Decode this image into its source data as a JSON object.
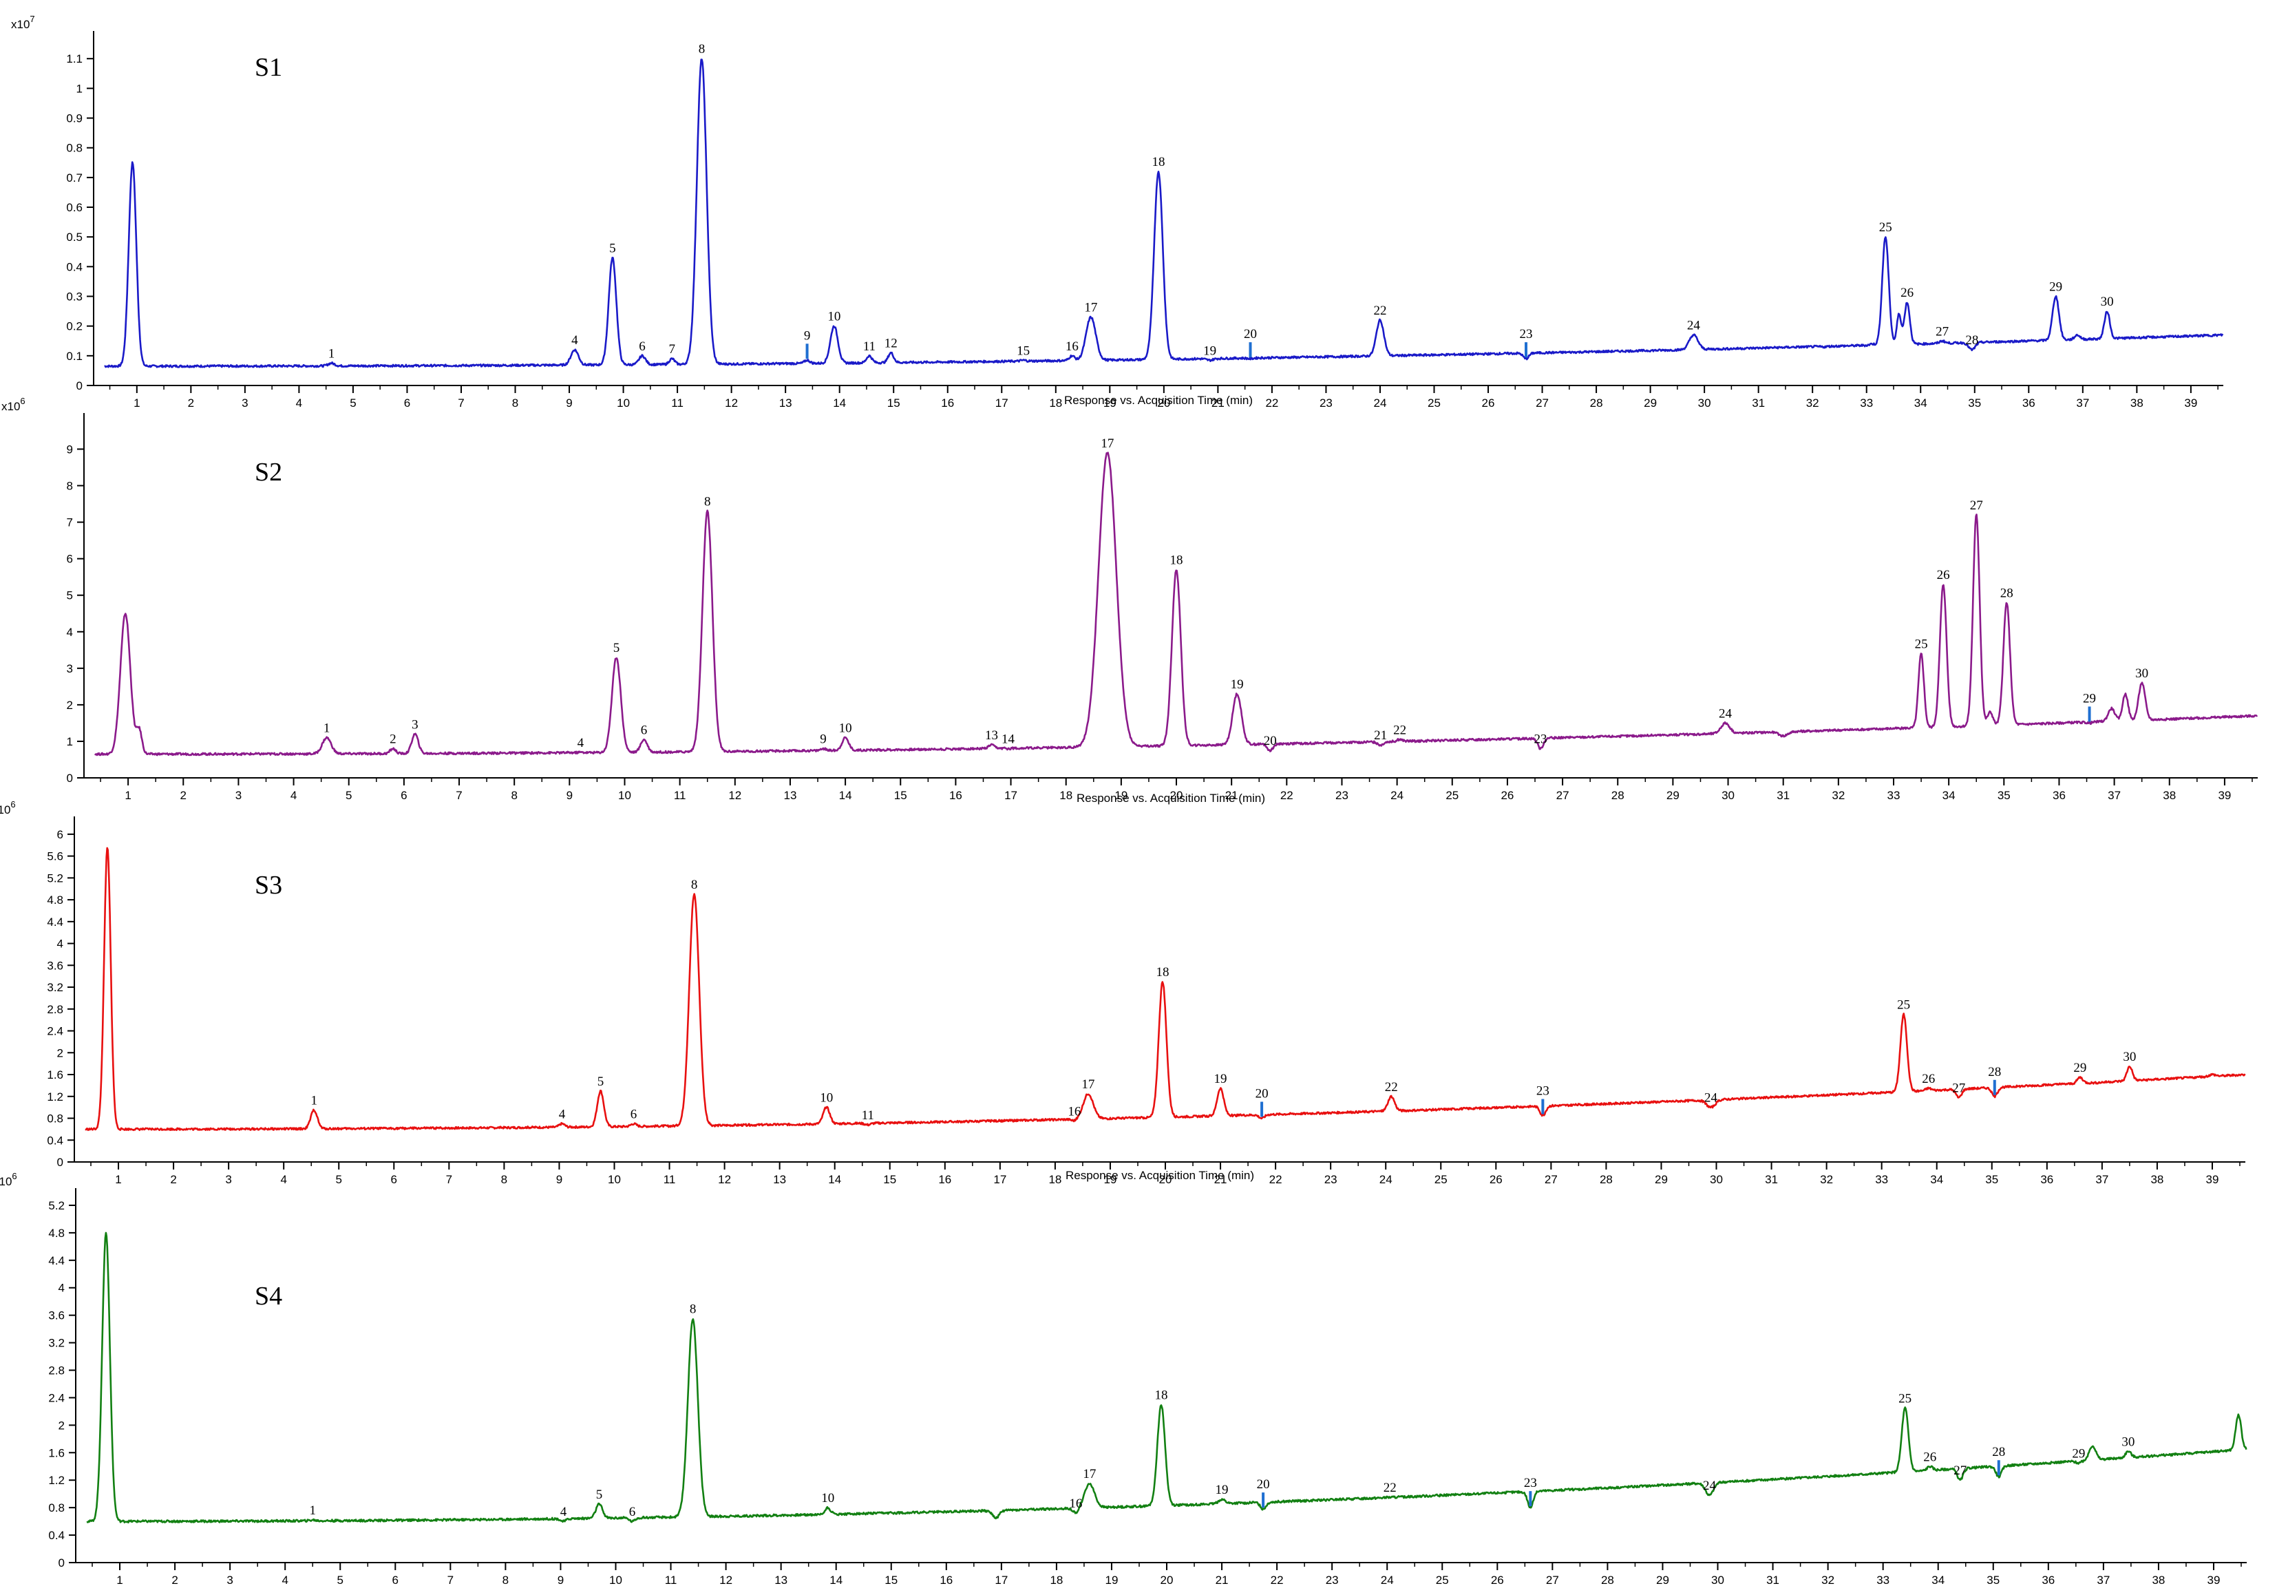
{
  "chart_data": [
    {
      "type": "line",
      "title": "S1",
      "exponent_label": "x10",
      "exponent_power": "7",
      "xlabel": "Response vs. Acquisition Time (min)",
      "color": "#1a1ac8",
      "xlim": [
        0.2,
        39.6
      ],
      "ylim": [
        0,
        1.17
      ],
      "yticks": [
        "0",
        "0.1",
        "0.2",
        "0.3",
        "0.4",
        "0.5",
        "0.6",
        "0.7",
        "0.8",
        "0.9",
        "1",
        "1.1"
      ],
      "xticks": [
        "1",
        "2",
        "3",
        "4",
        "5",
        "6",
        "7",
        "8",
        "9",
        "10",
        "11",
        "12",
        "13",
        "14",
        "15",
        "16",
        "17",
        "18",
        "19",
        "20",
        "21",
        "22",
        "23",
        "24",
        "25",
        "26",
        "27",
        "28",
        "29",
        "30",
        "31",
        "32",
        "33",
        "34",
        "35",
        "36",
        "37",
        "38",
        "39"
      ],
      "baseline": {
        "start": 0.065,
        "end": 0.17
      },
      "peaks": [
        {
          "label": "",
          "x": 0.92,
          "y": 0.75,
          "w": 0.07
        },
        {
          "label": "1",
          "x": 4.6,
          "y": 0.075,
          "w": 0.06
        },
        {
          "label": "4",
          "x": 9.1,
          "y": 0.12,
          "w": 0.07
        },
        {
          "label": "5",
          "x": 9.8,
          "y": 0.43,
          "w": 0.07
        },
        {
          "label": "6",
          "x": 10.35,
          "y": 0.1,
          "w": 0.06
        },
        {
          "label": "7",
          "x": 10.9,
          "y": 0.09,
          "w": 0.05
        },
        {
          "label": "8",
          "x": 11.45,
          "y": 1.1,
          "w": 0.09
        },
        {
          "label": "9",
          "x": 13.4,
          "y": 0.085,
          "w": 0.05
        },
        {
          "label": "10",
          "x": 13.9,
          "y": 0.2,
          "w": 0.07
        },
        {
          "label": "11",
          "x": 14.55,
          "y": 0.1,
          "w": 0.05
        },
        {
          "label": "12",
          "x": 14.95,
          "y": 0.11,
          "w": 0.05
        },
        {
          "label": "15",
          "x": 17.4,
          "y": 0.085,
          "w": 0.05
        },
        {
          "label": "16",
          "x": 18.3,
          "y": 0.1,
          "w": 0.05
        },
        {
          "label": "17",
          "x": 18.65,
          "y": 0.23,
          "w": 0.09
        },
        {
          "label": "18",
          "x": 19.9,
          "y": 0.72,
          "w": 0.08
        },
        {
          "label": "19",
          "x": 20.85,
          "y": 0.085,
          "w": 0.06
        },
        {
          "label": "20",
          "x": 21.6,
          "y": 0.09,
          "w": 0.05
        },
        {
          "label": "22",
          "x": 24.0,
          "y": 0.22,
          "w": 0.07
        },
        {
          "label": "23",
          "x": 26.7,
          "y": 0.09,
          "w": 0.05
        },
        {
          "label": "24",
          "x": 29.8,
          "y": 0.17,
          "w": 0.08
        },
        {
          "label": "25",
          "x": 33.35,
          "y": 0.5,
          "w": 0.06
        },
        {
          "label": "26",
          "x": 33.75,
          "y": 0.28,
          "w": 0.05
        },
        {
          "label": "27",
          "x": 34.4,
          "y": 0.15,
          "w": 0.05
        },
        {
          "label": "28",
          "x": 34.95,
          "y": 0.12,
          "w": 0.06
        },
        {
          "label": "29",
          "x": 36.5,
          "y": 0.3,
          "w": 0.06
        },
        {
          "label": "30",
          "x": 37.45,
          "y": 0.25,
          "w": 0.05
        }
      ],
      "extra_peaks": [
        {
          "x": 33.1,
          "y": 0.14,
          "w": 0.04
        },
        {
          "x": 33.6,
          "y": 0.24,
          "w": 0.04
        },
        {
          "x": 36.9,
          "y": 0.17,
          "w": 0.05
        },
        {
          "x": 32.2,
          "y": 0.13,
          "w": 0.06
        }
      ],
      "markers": [
        "9",
        "20",
        "23"
      ]
    },
    {
      "type": "line",
      "title": "S2",
      "exponent_label": "x10",
      "exponent_power": "6",
      "xlabel": "Response vs. Acquisition Time (min)",
      "color": "#8b1a8b",
      "xlim": [
        0.2,
        39.6
      ],
      "ylim": [
        0,
        9.8
      ],
      "yticks": [
        "0",
        "1",
        "2",
        "3",
        "4",
        "5",
        "6",
        "7",
        "8",
        "9"
      ],
      "xticks": [
        "1",
        "2",
        "3",
        "4",
        "5",
        "6",
        "7",
        "8",
        "9",
        "10",
        "11",
        "12",
        "13",
        "14",
        "15",
        "16",
        "17",
        "18",
        "19",
        "20",
        "21",
        "22",
        "23",
        "24",
        "25",
        "26",
        "27",
        "28",
        "29",
        "30",
        "31",
        "32",
        "33",
        "34",
        "35",
        "36",
        "37",
        "38",
        "39"
      ],
      "baseline": {
        "start": 0.65,
        "end": 1.7
      },
      "peaks": [
        {
          "label": "",
          "x": 0.95,
          "y": 4.5,
          "w": 0.09
        },
        {
          "label": "1",
          "x": 4.6,
          "y": 1.1,
          "w": 0.08
        },
        {
          "label": "2",
          "x": 5.8,
          "y": 0.8,
          "w": 0.05
        },
        {
          "label": "3",
          "x": 6.2,
          "y": 1.2,
          "w": 0.06
        },
        {
          "label": "4",
          "x": 9.2,
          "y": 0.7,
          "w": 0.05
        },
        {
          "label": "5",
          "x": 9.85,
          "y": 3.3,
          "w": 0.08
        },
        {
          "label": "6",
          "x": 10.35,
          "y": 1.05,
          "w": 0.06
        },
        {
          "label": "8",
          "x": 11.5,
          "y": 7.3,
          "w": 0.09
        },
        {
          "label": "9",
          "x": 13.6,
          "y": 0.8,
          "w": 0.05
        },
        {
          "label": "10",
          "x": 14.0,
          "y": 1.1,
          "w": 0.06
        },
        {
          "label": "13",
          "x": 16.65,
          "y": 0.9,
          "w": 0.05
        },
        {
          "label": "14",
          "x": 16.95,
          "y": 0.8,
          "w": 0.05
        },
        {
          "label": "17",
          "x": 18.75,
          "y": 8.9,
          "w": 0.16
        },
        {
          "label": "18",
          "x": 20.0,
          "y": 5.7,
          "w": 0.08
        },
        {
          "label": "19",
          "x": 21.1,
          "y": 2.3,
          "w": 0.08
        },
        {
          "label": "20",
          "x": 21.7,
          "y": 0.75,
          "w": 0.05
        },
        {
          "label": "21",
          "x": 23.7,
          "y": 0.9,
          "w": 0.05
        },
        {
          "label": "22",
          "x": 24.05,
          "y": 1.05,
          "w": 0.05
        },
        {
          "label": "23",
          "x": 26.6,
          "y": 0.8,
          "w": 0.05
        },
        {
          "label": "24",
          "x": 29.95,
          "y": 1.5,
          "w": 0.08
        },
        {
          "label": "25",
          "x": 33.5,
          "y": 3.4,
          "w": 0.05
        },
        {
          "label": "26",
          "x": 33.9,
          "y": 5.3,
          "w": 0.06
        },
        {
          "label": "27",
          "x": 34.5,
          "y": 7.2,
          "w": 0.06
        },
        {
          "label": "28",
          "x": 35.05,
          "y": 4.8,
          "w": 0.06
        },
        {
          "label": "29",
          "x": 36.55,
          "y": 1.5,
          "w": 0.05
        },
        {
          "label": "30",
          "x": 37.5,
          "y": 2.6,
          "w": 0.06
        }
      ],
      "extra_peaks": [
        {
          "x": 1.2,
          "y": 1.3,
          "w": 0.05
        },
        {
          "x": 31.0,
          "y": 1.15,
          "w": 0.08
        },
        {
          "x": 34.75,
          "y": 1.8,
          "w": 0.05
        },
        {
          "x": 37.2,
          "y": 2.3,
          "w": 0.05
        },
        {
          "x": 36.95,
          "y": 1.9,
          "w": 0.06
        }
      ],
      "markers": [
        "29"
      ]
    },
    {
      "type": "line",
      "title": "S3",
      "exponent_label": "x10",
      "exponent_power": "6",
      "xlabel": "Response vs. Acquisition Time (min)",
      "color": "#e81010",
      "xlim": [
        0.2,
        39.6
      ],
      "ylim": [
        0,
        6.2
      ],
      "yticks": [
        "0",
        "0.4",
        "0.8",
        "1.2",
        "1.6",
        "2",
        "2.4",
        "2.8",
        "3.2",
        "3.6",
        "4",
        "4.4",
        "4.8",
        "5.2",
        "5.6",
        "6"
      ],
      "xticks": [
        "1",
        "2",
        "3",
        "4",
        "5",
        "6",
        "7",
        "8",
        "9",
        "10",
        "11",
        "12",
        "13",
        "14",
        "15",
        "16",
        "17",
        "18",
        "19",
        "20",
        "21",
        "22",
        "23",
        "24",
        "25",
        "26",
        "27",
        "28",
        "29",
        "30",
        "31",
        "32",
        "33",
        "34",
        "35",
        "36",
        "37",
        "38",
        "39"
      ],
      "baseline": {
        "start": 0.6,
        "end": 1.6
      },
      "peaks": [
        {
          "label": "",
          "x": 0.8,
          "y": 5.75,
          "w": 0.06
        },
        {
          "label": "1",
          "x": 4.55,
          "y": 0.95,
          "w": 0.06
        },
        {
          "label": "4",
          "x": 9.05,
          "y": 0.7,
          "w": 0.05
        },
        {
          "label": "5",
          "x": 9.75,
          "y": 1.3,
          "w": 0.06
        },
        {
          "label": "6",
          "x": 10.35,
          "y": 0.7,
          "w": 0.05
        },
        {
          "label": "8",
          "x": 11.45,
          "y": 4.9,
          "w": 0.09
        },
        {
          "label": "10",
          "x": 13.85,
          "y": 1.0,
          "w": 0.06
        },
        {
          "label": "11",
          "x": 14.6,
          "y": 0.68,
          "w": 0.05
        },
        {
          "label": "16",
          "x": 18.35,
          "y": 0.75,
          "w": 0.05
        },
        {
          "label": "17",
          "x": 18.6,
          "y": 1.25,
          "w": 0.09
        },
        {
          "label": "18",
          "x": 19.95,
          "y": 3.3,
          "w": 0.07
        },
        {
          "label": "19",
          "x": 21.0,
          "y": 1.35,
          "w": 0.06
        },
        {
          "label": "20",
          "x": 21.75,
          "y": 0.8,
          "w": 0.05
        },
        {
          "label": "22",
          "x": 24.1,
          "y": 1.2,
          "w": 0.06
        },
        {
          "label": "23",
          "x": 26.85,
          "y": 0.85,
          "w": 0.05
        },
        {
          "label": "24",
          "x": 29.9,
          "y": 1.0,
          "w": 0.08
        },
        {
          "label": "25",
          "x": 33.4,
          "y": 2.7,
          "w": 0.06
        },
        {
          "label": "26",
          "x": 33.85,
          "y": 1.35,
          "w": 0.05
        },
        {
          "label": "27",
          "x": 34.4,
          "y": 1.18,
          "w": 0.05
        },
        {
          "label": "28",
          "x": 35.05,
          "y": 1.2,
          "w": 0.05
        },
        {
          "label": "29",
          "x": 36.6,
          "y": 1.55,
          "w": 0.05
        },
        {
          "label": "30",
          "x": 37.5,
          "y": 1.75,
          "w": 0.05
        }
      ],
      "extra_peaks": [
        {
          "x": 36.9,
          "y": 1.45,
          "w": 0.06
        },
        {
          "x": 39.0,
          "y": 1.6,
          "w": 0.06
        }
      ],
      "markers": [
        "20",
        "23",
        "28"
      ]
    },
    {
      "type": "line",
      "title": "S4",
      "exponent_label": "x10",
      "exponent_power": "6",
      "xlabel": "",
      "color": "#128012",
      "xlim": [
        0.2,
        39.6
      ],
      "ylim": [
        0,
        5.35
      ],
      "yticks": [
        "0",
        "0.4",
        "0.8",
        "1.2",
        "1.6",
        "2",
        "2.4",
        "2.8",
        "3.2",
        "3.6",
        "4",
        "4.4",
        "4.8",
        "5.2"
      ],
      "xticks": [
        "1",
        "2",
        "3",
        "4",
        "5",
        "6",
        "7",
        "8",
        "9",
        "10",
        "11",
        "12",
        "13",
        "14",
        "15",
        "16",
        "17",
        "18",
        "19",
        "20",
        "21",
        "22",
        "23",
        "24",
        "25",
        "26",
        "27",
        "28",
        "29",
        "30",
        "31",
        "32",
        "33",
        "34",
        "35",
        "36",
        "37",
        "38",
        "39"
      ],
      "baseline": {
        "start": 0.6,
        "end": 1.65
      },
      "peaks": [
        {
          "label": "",
          "x": 0.75,
          "y": 4.8,
          "w": 0.07
        },
        {
          "label": "1",
          "x": 4.5,
          "y": 0.62,
          "w": 0.05
        },
        {
          "label": "4",
          "x": 9.05,
          "y": 0.6,
          "w": 0.05
        },
        {
          "label": "5",
          "x": 9.7,
          "y": 0.85,
          "w": 0.06
        },
        {
          "label": "6",
          "x": 10.3,
          "y": 0.6,
          "w": 0.05
        },
        {
          "label": "8",
          "x": 11.4,
          "y": 3.55,
          "w": 0.09
        },
        {
          "label": "10",
          "x": 13.85,
          "y": 0.8,
          "w": 0.05
        },
        {
          "label": "16",
          "x": 18.35,
          "y": 0.72,
          "w": 0.05
        },
        {
          "label": "17",
          "x": 18.6,
          "y": 1.15,
          "w": 0.09
        },
        {
          "label": "18",
          "x": 19.9,
          "y": 2.3,
          "w": 0.07
        },
        {
          "label": "19",
          "x": 21.0,
          "y": 0.92,
          "w": 0.06
        },
        {
          "label": "20",
          "x": 21.75,
          "y": 0.78,
          "w": 0.05
        },
        {
          "label": "22",
          "x": 24.05,
          "y": 0.95,
          "w": 0.06
        },
        {
          "label": "23",
          "x": 26.6,
          "y": 0.8,
          "w": 0.05
        },
        {
          "label": "24",
          "x": 29.85,
          "y": 0.98,
          "w": 0.07
        },
        {
          "label": "25",
          "x": 33.4,
          "y": 2.25,
          "w": 0.06
        },
        {
          "label": "26",
          "x": 33.85,
          "y": 1.4,
          "w": 0.05
        },
        {
          "label": "27",
          "x": 34.4,
          "y": 1.2,
          "w": 0.05
        },
        {
          "label": "28",
          "x": 35.1,
          "y": 1.25,
          "w": 0.05
        },
        {
          "label": "29",
          "x": 36.55,
          "y": 1.45,
          "w": 0.05
        },
        {
          "label": "30",
          "x": 37.45,
          "y": 1.62,
          "w": 0.05
        }
      ],
      "extra_peaks": [
        {
          "x": 16.9,
          "y": 0.65,
          "w": 0.06
        },
        {
          "x": 36.8,
          "y": 1.7,
          "w": 0.06
        },
        {
          "x": 39.45,
          "y": 2.15,
          "w": 0.05
        }
      ],
      "markers": [
        "20",
        "23",
        "28"
      ]
    }
  ]
}
